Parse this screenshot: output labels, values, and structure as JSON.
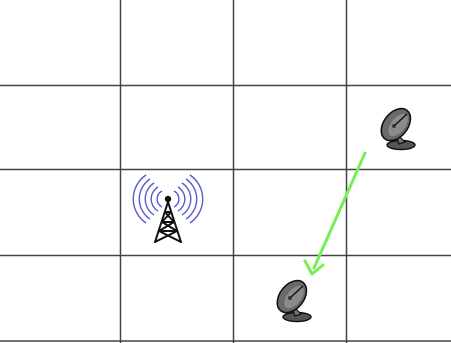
{
  "board": {
    "rows": 4,
    "cols": 4
  },
  "colors": {
    "grid": "#444444",
    "background": "#ffffff",
    "move_arrow": "#77ee55",
    "tower_waves": "#5a5acb",
    "tower_body": "#111111",
    "dish": "#666666"
  },
  "pieces": [
    {
      "type": "radio-tower",
      "icon": "radio-tower-icon",
      "row": 2,
      "col": 1
    },
    {
      "type": "satellite-dish",
      "icon": "satellite-dish-icon",
      "row": 1,
      "col": 3
    },
    {
      "type": "satellite-dish",
      "icon": "satellite-dish-icon",
      "row": 3,
      "col": 2
    }
  ],
  "move": {
    "from": {
      "row": 1,
      "col": 3
    },
    "to": {
      "row": 3,
      "col": 2
    }
  }
}
